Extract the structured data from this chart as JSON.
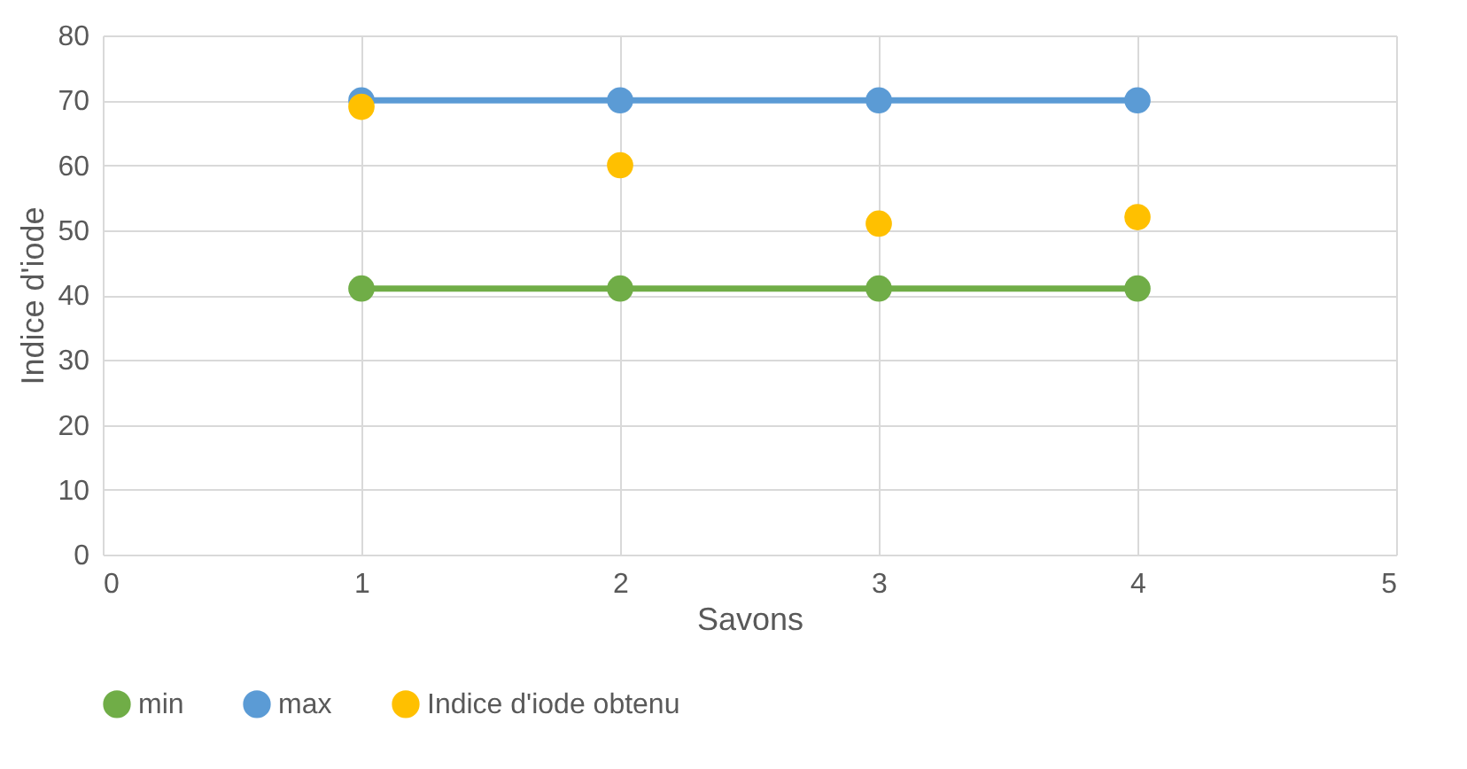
{
  "chart_data": {
    "type": "line",
    "xlabel": "Savons",
    "ylabel": "Indice d'iode",
    "x": [
      1,
      2,
      3,
      4
    ],
    "xlim": [
      0,
      5
    ],
    "xticks": [
      0,
      1,
      2,
      3,
      4,
      5
    ],
    "ylim": [
      0,
      80
    ],
    "yticks": [
      0,
      10,
      20,
      30,
      40,
      50,
      60,
      70,
      80
    ],
    "grid": true,
    "legend": "bottom",
    "marker": "circle",
    "series": [
      {
        "name": "min",
        "color": "#70ad47",
        "values": [
          41,
          41,
          41,
          41
        ]
      },
      {
        "name": "max",
        "color": "#5b9bd5",
        "values": [
          70,
          70,
          70,
          70
        ]
      },
      {
        "name": "Indice d'iode obtenu",
        "color": "#ffc000",
        "type": "scatter",
        "values": [
          69,
          60,
          51,
          52
        ]
      }
    ]
  }
}
